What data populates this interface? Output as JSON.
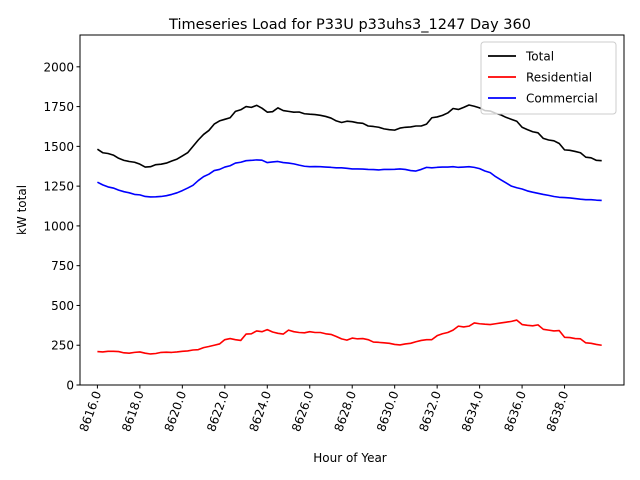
{
  "chart_data": {
    "type": "line",
    "title": "Timeseries Load for P33U p33uhs3_1247  Day 360",
    "xlabel": "Hour of Year",
    "ylabel": "kW total",
    "xlim": [
      8615.18,
      8640.8
    ],
    "ylim": [
      0,
      2200
    ],
    "x_ticks": [
      8616,
      8618,
      8620,
      8622,
      8624,
      8626,
      8628,
      8630,
      8632,
      8634,
      8636,
      8638
    ],
    "x_tick_labels": [
      "8616.0",
      "8618.0",
      "8620.0",
      "8622.0",
      "8624.0",
      "8626.0",
      "8628.0",
      "8630.0",
      "8632.0",
      "8634.0",
      "8636.0",
      "8638.0"
    ],
    "y_ticks": [
      0,
      250,
      500,
      750,
      1000,
      1250,
      1500,
      1750,
      2000
    ],
    "y_tick_labels": [
      "0",
      "250",
      "500",
      "750",
      "1000",
      "1250",
      "1500",
      "1750",
      "2000"
    ],
    "legend_position": "top-right",
    "x_start": 8616,
    "x_step": 0.25,
    "series": [
      {
        "name": "Total",
        "color": "#000000",
        "values": [
          1482,
          1460,
          1455,
          1445,
          1425,
          1412,
          1405,
          1400,
          1388,
          1370,
          1372,
          1385,
          1388,
          1395,
          1408,
          1420,
          1440,
          1460,
          1500,
          1540,
          1575,
          1600,
          1640,
          1660,
          1670,
          1680,
          1720,
          1730,
          1750,
          1745,
          1758,
          1740,
          1715,
          1718,
          1742,
          1725,
          1720,
          1715,
          1716,
          1705,
          1702,
          1700,
          1695,
          1688,
          1678,
          1660,
          1650,
          1658,
          1655,
          1648,
          1645,
          1628,
          1625,
          1620,
          1610,
          1605,
          1602,
          1615,
          1620,
          1622,
          1628,
          1628,
          1640,
          1680,
          1685,
          1695,
          1710,
          1738,
          1732,
          1745,
          1760,
          1752,
          1742,
          1725,
          1722,
          1708,
          1698,
          1682,
          1670,
          1658,
          1620,
          1605,
          1592,
          1585,
          1550,
          1540,
          1535,
          1518,
          1478,
          1475,
          1468,
          1460,
          1432,
          1428,
          1412,
          1410
        ]
      },
      {
        "name": "Residential",
        "color": "#ff0000",
        "values": [
          210,
          208,
          212,
          212,
          210,
          202,
          200,
          205,
          208,
          200,
          195,
          198,
          205,
          206,
          205,
          208,
          212,
          214,
          220,
          222,
          235,
          242,
          250,
          258,
          285,
          292,
          285,
          280,
          320,
          322,
          340,
          335,
          348,
          333,
          325,
          320,
          345,
          335,
          330,
          328,
          335,
          330,
          330,
          322,
          318,
          305,
          290,
          282,
          295,
          290,
          292,
          285,
          270,
          268,
          265,
          262,
          255,
          252,
          258,
          262,
          272,
          280,
          285,
          285,
          310,
          322,
          330,
          345,
          370,
          365,
          370,
          390,
          385,
          382,
          380,
          385,
          390,
          395,
          400,
          408,
          380,
          375,
          372,
          378,
          350,
          345,
          340,
          342,
          300,
          298,
          292,
          290,
          265,
          262,
          255,
          250
        ]
      },
      {
        "name": "Commercial",
        "color": "#0000ff",
        "values": [
          1275,
          1258,
          1245,
          1238,
          1225,
          1215,
          1208,
          1198,
          1195,
          1185,
          1182,
          1183,
          1185,
          1190,
          1198,
          1208,
          1222,
          1238,
          1255,
          1285,
          1310,
          1325,
          1348,
          1355,
          1370,
          1378,
          1395,
          1400,
          1410,
          1412,
          1415,
          1413,
          1398,
          1402,
          1405,
          1398,
          1395,
          1390,
          1382,
          1375,
          1372,
          1373,
          1372,
          1370,
          1368,
          1365,
          1365,
          1362,
          1358,
          1358,
          1357,
          1355,
          1354,
          1352,
          1355,
          1355,
          1356,
          1358,
          1355,
          1348,
          1345,
          1355,
          1368,
          1365,
          1368,
          1370,
          1370,
          1372,
          1368,
          1370,
          1372,
          1368,
          1360,
          1345,
          1335,
          1310,
          1290,
          1270,
          1250,
          1240,
          1232,
          1220,
          1212,
          1205,
          1198,
          1192,
          1185,
          1180,
          1178,
          1176,
          1172,
          1168,
          1165,
          1165,
          1162,
          1160
        ]
      }
    ]
  }
}
